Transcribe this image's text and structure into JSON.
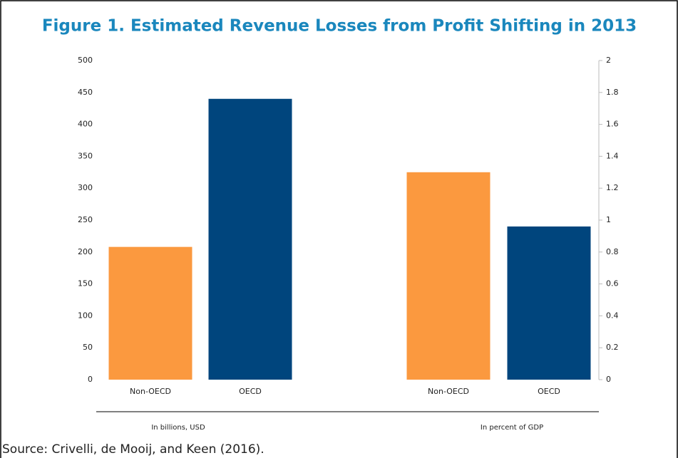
{
  "chart_data": {
    "type": "bar",
    "title": "Figure 1. Estimated Revenue Losses from Profit Shifting in 2013",
    "source": "Source: Crivelli, de Mooij, and Keen (2016).",
    "categories": [
      "Non-OECD",
      "OECD",
      "Non-OECD",
      "OECD"
    ],
    "values": [
      208,
      440,
      1.3,
      0.96
    ],
    "axes": [
      "y",
      "y",
      "y2",
      "y2"
    ],
    "colors": [
      "#fb993f",
      "#00457d",
      "#fb993f",
      "#00457d"
    ],
    "group_labels": [
      "In billions, USD",
      "In percent of GDP"
    ],
    "ylim": [
      0,
      500
    ],
    "yticks": [
      0,
      50,
      100,
      150,
      200,
      250,
      300,
      350,
      400,
      450,
      500
    ],
    "y2lim": [
      0,
      2
    ],
    "y2ticks": [
      0,
      0.2,
      0.4,
      0.6,
      0.8,
      1,
      1.2,
      1.4,
      1.6,
      1.8,
      2
    ]
  }
}
